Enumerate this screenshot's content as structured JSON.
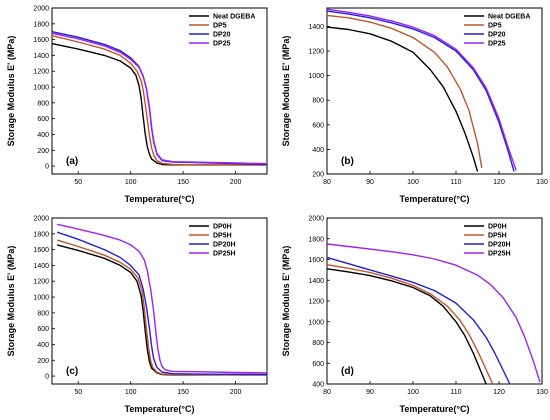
{
  "chart_data": [
    {
      "type": "line",
      "panel_label": "(a)",
      "xlabel": "Temperature(°C)",
      "ylabel": "Storage Modulus E' (MPa)",
      "xlim": [
        25,
        230
      ],
      "ylim": [
        -100,
        2000
      ],
      "xticks": [
        50,
        100,
        150,
        200
      ],
      "yticks": [
        0,
        200,
        400,
        600,
        800,
        1000,
        1200,
        1400,
        1600,
        1800,
        2000
      ],
      "legend_position": "top-right",
      "series": [
        {
          "name": "Neat DGEBA",
          "color": "#000000",
          "x": [
            25,
            50,
            75,
            90,
            100,
            105,
            108,
            110,
            112,
            114,
            116,
            118,
            120,
            125,
            130,
            140,
            160,
            230
          ],
          "y": [
            1550,
            1480,
            1400,
            1330,
            1240,
            1150,
            1020,
            860,
            620,
            400,
            240,
            150,
            90,
            40,
            20,
            15,
            15,
            15
          ]
        },
        {
          "name": "DP5",
          "color": "#c0562b",
          "x": [
            25,
            50,
            75,
            90,
            100,
            106,
            110,
            112,
            114,
            116,
            118,
            120,
            122,
            125,
            130,
            140,
            160,
            230
          ],
          "y": [
            1650,
            1570,
            1480,
            1400,
            1300,
            1200,
            1080,
            960,
            780,
            580,
            380,
            230,
            140,
            70,
            35,
            20,
            15,
            15
          ]
        },
        {
          "name": "DP20",
          "color": "#2222cc",
          "x": [
            25,
            50,
            75,
            90,
            100,
            108,
            112,
            115,
            118,
            120,
            122,
            125,
            130,
            140,
            160,
            190,
            230
          ],
          "y": [
            1700,
            1630,
            1540,
            1460,
            1370,
            1260,
            1140,
            980,
            720,
            480,
            300,
            150,
            70,
            50,
            45,
            35,
            20
          ]
        },
        {
          "name": "DP25",
          "color": "#a020f0",
          "x": [
            25,
            50,
            75,
            90,
            100,
            108,
            112,
            115,
            118,
            120,
            122,
            125,
            130,
            140,
            160,
            200,
            230
          ],
          "y": [
            1680,
            1610,
            1520,
            1440,
            1350,
            1250,
            1130,
            990,
            740,
            500,
            320,
            160,
            80,
            55,
            50,
            40,
            30
          ]
        }
      ]
    },
    {
      "type": "line",
      "panel_label": "(b)",
      "xlabel": "Temperature(°C)",
      "ylabel": "Storage Modulus E' (MPa)",
      "xlim": [
        80,
        130
      ],
      "ylim": [
        200,
        1550
      ],
      "xticks": [
        80,
        90,
        100,
        110,
        120,
        130
      ],
      "yticks": [
        200,
        400,
        600,
        800,
        1000,
        1200,
        1400
      ],
      "legend_position": "top-right",
      "series": [
        {
          "name": "Neat DGEBA",
          "color": "#000000",
          "x": [
            80,
            85,
            90,
            95,
            100,
            104,
            107,
            110,
            112,
            114,
            115
          ],
          "y": [
            1395,
            1375,
            1340,
            1280,
            1190,
            1050,
            910,
            710,
            540,
            340,
            220
          ]
        },
        {
          "name": "DP5",
          "color": "#c0562b",
          "x": [
            80,
            85,
            90,
            95,
            100,
            105,
            108,
            111,
            113,
            115,
            116
          ],
          "y": [
            1490,
            1470,
            1435,
            1385,
            1310,
            1190,
            1070,
            890,
            720,
            450,
            250
          ]
        },
        {
          "name": "DP20",
          "color": "#2222cc",
          "x": [
            80,
            85,
            90,
            95,
            100,
            105,
            110,
            114,
            117,
            120,
            122,
            123.5
          ],
          "y": [
            1525,
            1500,
            1470,
            1430,
            1380,
            1310,
            1200,
            1050,
            880,
            620,
            400,
            220
          ]
        },
        {
          "name": "DP25",
          "color": "#a020f0",
          "x": [
            80,
            85,
            90,
            95,
            100,
            105,
            110,
            114,
            117,
            120,
            122,
            124
          ],
          "y": [
            1540,
            1515,
            1485,
            1445,
            1395,
            1325,
            1215,
            1065,
            900,
            650,
            430,
            230
          ]
        }
      ]
    },
    {
      "type": "line",
      "panel_label": "(c)",
      "xlabel": "Temperature(°C)",
      "ylabel": "Storage Modulus E' (MPa)",
      "xlim": [
        25,
        230
      ],
      "ylim": [
        -100,
        2000
      ],
      "xticks": [
        50,
        100,
        150,
        200
      ],
      "yticks": [
        0,
        200,
        400,
        600,
        800,
        1000,
        1200,
        1400,
        1600,
        1800,
        2000
      ],
      "legend_position": "top-right",
      "series": [
        {
          "name": "DP0H",
          "color": "#000000",
          "x": [
            30,
            50,
            75,
            90,
            100,
            106,
            110,
            112,
            114,
            116,
            118,
            120,
            125,
            130,
            140,
            160,
            230
          ],
          "y": [
            1660,
            1590,
            1490,
            1400,
            1310,
            1200,
            1020,
            820,
            560,
            330,
            180,
            100,
            40,
            20,
            15,
            15,
            15
          ]
        },
        {
          "name": "DP5H",
          "color": "#c0562b",
          "x": [
            30,
            50,
            75,
            90,
            100,
            107,
            111,
            113,
            115,
            117,
            119,
            121,
            125,
            130,
            140,
            160,
            230
          ],
          "y": [
            1720,
            1640,
            1530,
            1440,
            1350,
            1240,
            1070,
            860,
            600,
            360,
            200,
            110,
            50,
            25,
            20,
            18,
            15
          ]
        },
        {
          "name": "DP20H",
          "color": "#2222cc",
          "x": [
            30,
            50,
            75,
            90,
            100,
            108,
            112,
            115,
            118,
            120,
            122,
            125,
            130,
            140,
            160,
            230
          ],
          "y": [
            1820,
            1730,
            1600,
            1500,
            1400,
            1280,
            1100,
            880,
            600,
            380,
            220,
            110,
            50,
            30,
            25,
            20
          ]
        },
        {
          "name": "DP25H",
          "color": "#a020f0",
          "x": [
            30,
            50,
            75,
            90,
            100,
            108,
            113,
            116,
            119,
            122,
            124,
            126,
            128,
            130,
            133,
            140,
            160,
            200,
            230
          ],
          "y": [
            1920,
            1860,
            1780,
            1720,
            1660,
            1580,
            1470,
            1330,
            1100,
            820,
            560,
            340,
            200,
            120,
            80,
            60,
            55,
            45,
            40
          ]
        }
      ]
    },
    {
      "type": "line",
      "panel_label": "(d)",
      "xlabel": "Temperature(°C)",
      "ylabel": "Storage Modulus E' (MPa)",
      "xlim": [
        80,
        130
      ],
      "ylim": [
        400,
        2000
      ],
      "xticks": [
        80,
        90,
        100,
        110,
        120,
        130
      ],
      "yticks": [
        400,
        600,
        800,
        1000,
        1200,
        1400,
        1600,
        1800,
        2000
      ],
      "legend_position": "top-right",
      "series": [
        {
          "name": "DP0H",
          "color": "#000000",
          "x": [
            80,
            85,
            90,
            95,
            100,
            104,
            107,
            110,
            112,
            114,
            116,
            117
          ],
          "y": [
            1510,
            1480,
            1445,
            1395,
            1330,
            1250,
            1150,
            1000,
            870,
            700,
            500,
            400
          ]
        },
        {
          "name": "DP5H",
          "color": "#c0562b",
          "x": [
            80,
            85,
            90,
            95,
            100,
            104,
            108,
            111,
            113,
            115,
            117,
            118.5
          ],
          "y": [
            1550,
            1515,
            1475,
            1420,
            1350,
            1270,
            1150,
            1010,
            880,
            720,
            540,
            400
          ]
        },
        {
          "name": "DP20H",
          "color": "#2222cc",
          "x": [
            80,
            85,
            90,
            95,
            100,
            105,
            110,
            114,
            117,
            119,
            121,
            122.5
          ],
          "y": [
            1620,
            1560,
            1500,
            1440,
            1380,
            1300,
            1180,
            1020,
            850,
            700,
            530,
            400
          ]
        },
        {
          "name": "DP25H",
          "color": "#a020f0",
          "x": [
            80,
            85,
            90,
            95,
            100,
            105,
            110,
            115,
            118,
            121,
            124,
            126,
            128,
            129.5
          ],
          "y": [
            1750,
            1725,
            1700,
            1675,
            1645,
            1605,
            1545,
            1450,
            1360,
            1230,
            1040,
            850,
            620,
            420
          ]
        }
      ]
    }
  ]
}
